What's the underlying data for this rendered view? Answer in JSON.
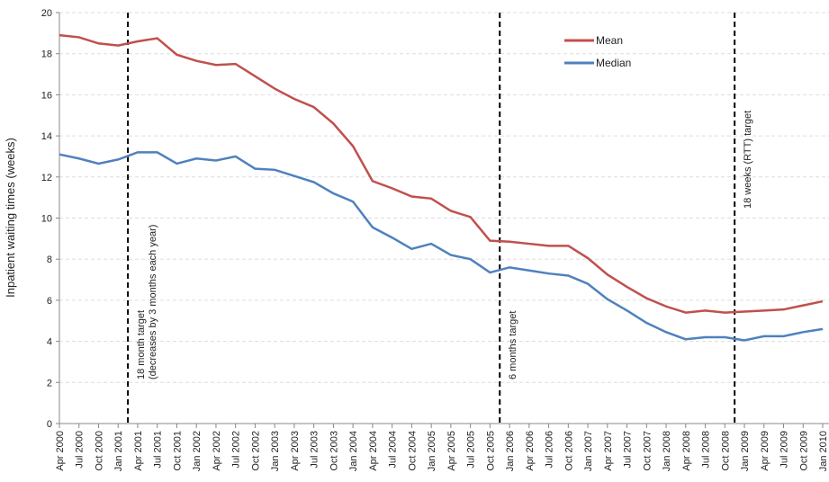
{
  "chart_data": {
    "type": "line",
    "y_label": "Inpatient waiting times (weeks)",
    "categories": [
      "Apr 2000",
      "Jul 2000",
      "Oct 2000",
      "Jan 2001",
      "Apr 2001",
      "Jul 2001",
      "Oct 2001",
      "Jan 2002",
      "Apr 2002",
      "Jul 2002",
      "Oct 2002",
      "Jan 2003",
      "Apr 2003",
      "Jul 2003",
      "Oct 2003",
      "Jan 2004",
      "Apr 2004",
      "Jul 2004",
      "Oct 2004",
      "Jan 2005",
      "Apr 2005",
      "Jul 2005",
      "Oct 2005",
      "Jan 2006",
      "Apr 2006",
      "Jul 2006",
      "Oct 2006",
      "Jan 2007",
      "Apr 2007",
      "Jul 2007",
      "Oct 2007",
      "Jan 2008",
      "Apr 2008",
      "Jul 2008",
      "Oct 2008",
      "Jan 2009",
      "Apr 2009",
      "Jul 2009",
      "Oct 2009",
      "Jan 2010"
    ],
    "series": [
      {
        "name": "Mean",
        "color": "#c0504d",
        "values": [
          18.9,
          18.8,
          18.5,
          18.4,
          18.6,
          18.75,
          17.95,
          17.65,
          17.45,
          17.5,
          16.9,
          16.3,
          15.8,
          15.4,
          14.6,
          13.5,
          11.8,
          11.45,
          11.05,
          10.95,
          10.35,
          10.05,
          8.9,
          8.85,
          8.75,
          8.65,
          8.65,
          8.05,
          7.25,
          6.65,
          6.1,
          5.7,
          5.4,
          5.5,
          5.4,
          5.45,
          5.5,
          5.55,
          5.75,
          5.95
        ]
      },
      {
        "name": "Median",
        "color": "#4f81bd",
        "values": [
          13.1,
          12.9,
          12.65,
          12.85,
          13.2,
          13.2,
          12.65,
          12.9,
          12.8,
          13.0,
          12.4,
          12.35,
          12.05,
          11.75,
          11.2,
          10.8,
          9.55,
          9.05,
          8.5,
          8.75,
          8.2,
          8.0,
          7.35,
          7.6,
          7.45,
          7.3,
          7.2,
          6.8,
          6.05,
          5.5,
          4.9,
          4.45,
          4.1,
          4.2,
          4.2,
          4.05,
          4.25,
          4.25,
          4.45,
          4.6
        ]
      }
    ],
    "ylim": [
      0,
      20
    ],
    "yticks": [
      0,
      2,
      4,
      6,
      8,
      10,
      12,
      14,
      16,
      18,
      20
    ],
    "grid": true,
    "annotations": [
      {
        "before": "Apr 2001",
        "text": [
          "18 month target",
          "(decreases by 3 months each year)"
        ]
      },
      {
        "before": "Jan 2006",
        "text": [
          "6 months target"
        ]
      },
      {
        "before": "Jan 2009",
        "text": [
          "18 weeks (RTT) target"
        ]
      }
    ]
  }
}
